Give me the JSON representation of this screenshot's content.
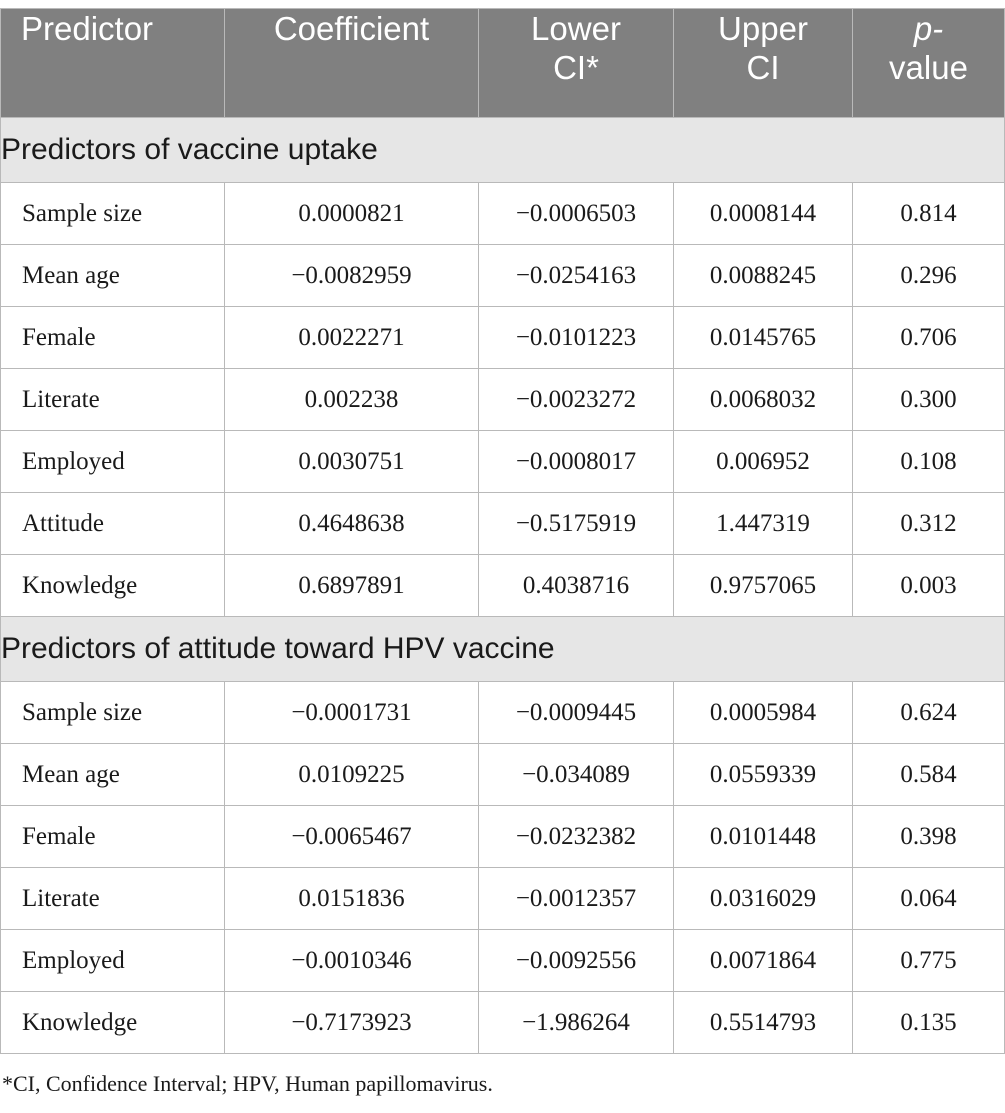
{
  "header": {
    "predictor": "Predictor",
    "coefficient": "Coefficient",
    "lower_ci": [
      "Lower",
      "CI*"
    ],
    "upper_ci": [
      "Upper",
      "CI"
    ],
    "p_value": [
      "p-",
      "value"
    ]
  },
  "sections": [
    {
      "title": "Predictors of vaccine uptake",
      "rows": [
        {
          "predictor": "Sample size",
          "coefficient": "0.0000821",
          "lower": "−0.0006503",
          "upper": "0.0008144",
          "p": "0.814"
        },
        {
          "predictor": "Mean age",
          "coefficient": "−0.0082959",
          "lower": "−0.0254163",
          "upper": "0.0088245",
          "p": "0.296"
        },
        {
          "predictor": "Female",
          "coefficient": "0.0022271",
          "lower": "−0.0101223",
          "upper": "0.0145765",
          "p": "0.706"
        },
        {
          "predictor": "Literate",
          "coefficient": "0.002238",
          "lower": "−0.0023272",
          "upper": "0.0068032",
          "p": "0.300"
        },
        {
          "predictor": "Employed",
          "coefficient": "0.0030751",
          "lower": "−0.0008017",
          "upper": "0.006952",
          "p": "0.108"
        },
        {
          "predictor": "Attitude",
          "coefficient": "0.4648638",
          "lower": "−0.5175919",
          "upper": "1.447319",
          "p": "0.312"
        },
        {
          "predictor": "Knowledge",
          "coefficient": "0.6897891",
          "lower": "0.4038716",
          "upper": "0.9757065",
          "p": "0.003"
        }
      ]
    },
    {
      "title": "Predictors of attitude toward HPV vaccine",
      "rows": [
        {
          "predictor": "Sample size",
          "coefficient": "−0.0001731",
          "lower": "−0.0009445",
          "upper": "0.0005984",
          "p": "0.624"
        },
        {
          "predictor": "Mean age",
          "coefficient": "0.0109225",
          "lower": "−0.034089",
          "upper": "0.0559339",
          "p": "0.584"
        },
        {
          "predictor": "Female",
          "coefficient": "−0.0065467",
          "lower": "−0.0232382",
          "upper": "0.0101448",
          "p": "0.398"
        },
        {
          "predictor": "Literate",
          "coefficient": "0.0151836",
          "lower": "−0.0012357",
          "upper": "0.0316029",
          "p": "0.064"
        },
        {
          "predictor": "Employed",
          "coefficient": "−0.0010346",
          "lower": "−0.0092556",
          "upper": "0.0071864",
          "p": "0.775"
        },
        {
          "predictor": "Knowledge",
          "coefficient": "−0.7173923",
          "lower": "−1.986264",
          "upper": "0.5514793",
          "p": "0.135"
        }
      ]
    }
  ],
  "footnote": "*CI, Confidence Interval; HPV, Human papillomavirus."
}
